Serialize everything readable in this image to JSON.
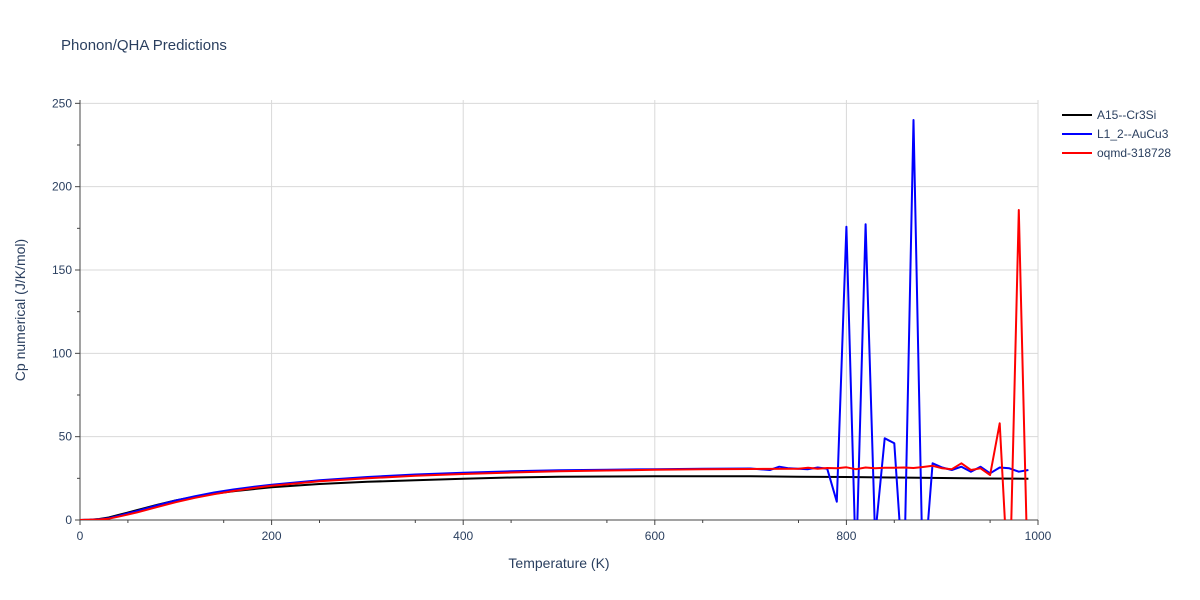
{
  "chart_data": {
    "type": "line",
    "title": "Phonon/QHA Predictions",
    "xlabel": "Temperature (K)",
    "ylabel": "Cp numerical (J/K/mol)",
    "xlim": [
      0,
      1000
    ],
    "ylim": [
      0,
      252
    ],
    "xticks": [
      0,
      200,
      400,
      600,
      800,
      1000
    ],
    "yticks": [
      0,
      50,
      100,
      150,
      200,
      250
    ],
    "grid": true,
    "legend_position": "top-right",
    "series": [
      {
        "name": "A15--Cr3Si",
        "color": "#000000",
        "x": [
          0,
          10,
          20,
          30,
          40,
          60,
          80,
          100,
          120,
          140,
          160,
          180,
          200,
          250,
          300,
          350,
          400,
          450,
          500,
          550,
          600,
          650,
          700,
          750,
          800,
          850,
          900,
          950,
          990
        ],
        "y": [
          0,
          0.2,
          0.6,
          1.5,
          3,
          6,
          9,
          11.8,
          14,
          15.8,
          17.2,
          18.5,
          19.6,
          21.6,
          22.9,
          23.9,
          24.8,
          25.5,
          25.9,
          26.1,
          26.2,
          26.2,
          26.2,
          26.0,
          25.8,
          25.5,
          25.2,
          24.9,
          24.8
        ]
      },
      {
        "name": "L1_2--AuCu3",
        "color": "#0000ff",
        "x": [
          0,
          10,
          20,
          30,
          40,
          60,
          80,
          100,
          120,
          140,
          160,
          180,
          200,
          250,
          300,
          350,
          400,
          450,
          500,
          550,
          600,
          650,
          700,
          720,
          730,
          740,
          760,
          770,
          780,
          790,
          800,
          810,
          820,
          830,
          840,
          850,
          860,
          870,
          880,
          890,
          900,
          910,
          920,
          930,
          940,
          950,
          960,
          970,
          980,
          990
        ],
        "y": [
          0,
          0.1,
          0.4,
          1.1,
          2.5,
          5.5,
          8.7,
          11.7,
          14.3,
          16.5,
          18.3,
          19.8,
          21.2,
          23.9,
          25.8,
          27.3,
          28.4,
          29.2,
          29.8,
          30.2,
          30.5,
          30.8,
          30.9,
          30.0,
          32,
          31,
          30.5,
          31.5,
          30.8,
          11,
          176,
          -30,
          177.5,
          -10,
          49,
          46,
          -40,
          240,
          -40,
          34,
          31.5,
          30,
          32,
          29,
          32,
          28,
          31.5,
          31,
          29,
          30
        ]
      },
      {
        "name": "oqmd-318728",
        "color": "#ff0000",
        "x": [
          0,
          10,
          20,
          30,
          40,
          60,
          80,
          100,
          120,
          140,
          160,
          180,
          200,
          250,
          300,
          350,
          400,
          450,
          500,
          550,
          600,
          650,
          700,
          750,
          760,
          770,
          780,
          790,
          800,
          810,
          820,
          830,
          840,
          850,
          860,
          870,
          880,
          890,
          900,
          910,
          920,
          930,
          940,
          950,
          960,
          970,
          980,
          990
        ],
        "y": [
          0,
          0.1,
          0.3,
          0.8,
          2,
          4.6,
          7.7,
          10.7,
          13.3,
          15.5,
          17.4,
          19.1,
          20.5,
          23.2,
          25.0,
          26.5,
          27.6,
          28.5,
          29.2,
          29.7,
          30.1,
          30.4,
          30.6,
          30.8,
          31.3,
          30.8,
          31.2,
          31.0,
          31.6,
          30.5,
          31.5,
          31.0,
          31.4,
          31.3,
          31.5,
          31.2,
          31.8,
          32.5,
          31.0,
          30.5,
          34,
          30,
          31,
          27,
          58,
          -50,
          186,
          -50
        ]
      }
    ]
  }
}
